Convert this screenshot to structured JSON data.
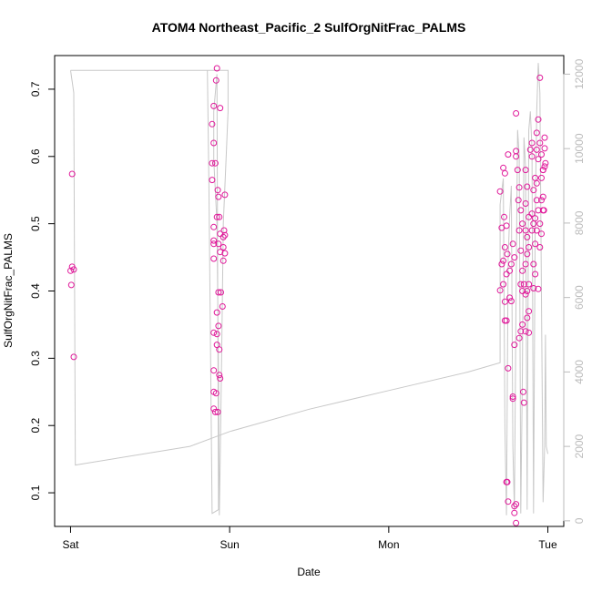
{
  "chart_data": {
    "type": "scatter",
    "title": "ATOM4 Northeast_Pacific_2 SulfOrgNitFrac_PALMS",
    "xlabel": "Date",
    "ylabel": "SulfOrgNitFrac_PALMS",
    "x_unit": "days after Sat 00:00",
    "x_ticks": [
      {
        "value": 0,
        "label": "Sat"
      },
      {
        "value": 1,
        "label": "Sun"
      },
      {
        "value": 2,
        "label": "Mon"
      },
      {
        "value": 3,
        "label": "Tue"
      }
    ],
    "xlim": [
      -0.1,
      3.1
    ],
    "ylim": [
      0.05,
      0.75
    ],
    "y_ticks": [
      0.1,
      0.2,
      0.3,
      0.4,
      0.5,
      0.6,
      0.7
    ],
    "y2lim": [
      -150,
      12500
    ],
    "y2_ticks": [
      0,
      2000,
      4000,
      6000,
      8000,
      10000,
      12000
    ],
    "grid": false,
    "colors": {
      "points": "#e0199a",
      "altitude": "#c8c8c8",
      "right_axis": "#bbbbbb"
    },
    "series": [
      {
        "marker": "open-circle",
        "points": [
          [
            0.01,
            0.574
          ],
          [
            0.0,
            0.43
          ],
          [
            0.01,
            0.436
          ],
          [
            0.02,
            0.432
          ],
          [
            0.005,
            0.409
          ],
          [
            0.02,
            0.302
          ],
          [
            0.9,
            0.675
          ],
          [
            0.92,
            0.731
          ],
          [
            0.89,
            0.648
          ],
          [
            0.9,
            0.62
          ],
          [
            0.91,
            0.59
          ],
          [
            0.89,
            0.59
          ],
          [
            0.915,
            0.713
          ],
          [
            0.94,
            0.672
          ],
          [
            0.89,
            0.565
          ],
          [
            0.925,
            0.55
          ],
          [
            0.92,
            0.51
          ],
          [
            0.93,
            0.54
          ],
          [
            0.97,
            0.543
          ],
          [
            0.9,
            0.495
          ],
          [
            0.935,
            0.51
          ],
          [
            0.94,
            0.485
          ],
          [
            0.965,
            0.49
          ],
          [
            0.96,
            0.48
          ],
          [
            0.97,
            0.483
          ],
          [
            0.9,
            0.47
          ],
          [
            0.9,
            0.475
          ],
          [
            0.93,
            0.47
          ],
          [
            0.96,
            0.465
          ],
          [
            0.94,
            0.458
          ],
          [
            0.97,
            0.456
          ],
          [
            0.9,
            0.448
          ],
          [
            0.96,
            0.445
          ],
          [
            0.93,
            0.398
          ],
          [
            0.945,
            0.398
          ],
          [
            0.955,
            0.377
          ],
          [
            0.92,
            0.368
          ],
          [
            0.93,
            0.348
          ],
          [
            0.9,
            0.338
          ],
          [
            0.92,
            0.336
          ],
          [
            0.92,
            0.32
          ],
          [
            0.935,
            0.313
          ],
          [
            0.9,
            0.282
          ],
          [
            0.935,
            0.275
          ],
          [
            0.94,
            0.27
          ],
          [
            0.9,
            0.25
          ],
          [
            0.915,
            0.248
          ],
          [
            0.9,
            0.225
          ],
          [
            0.91,
            0.22
          ],
          [
            0.925,
            0.22
          ],
          [
            2.7,
            0.401
          ],
          [
            2.72,
            0.583
          ],
          [
            2.75,
            0.603
          ],
          [
            2.73,
            0.575
          ],
          [
            2.7,
            0.548
          ],
          [
            2.725,
            0.51
          ],
          [
            2.71,
            0.494
          ],
          [
            2.74,
            0.497
          ],
          [
            2.73,
            0.465
          ],
          [
            2.72,
            0.445
          ],
          [
            2.745,
            0.455
          ],
          [
            2.71,
            0.44
          ],
          [
            2.74,
            0.425
          ],
          [
            2.72,
            0.41
          ],
          [
            2.73,
            0.356
          ],
          [
            2.74,
            0.356
          ],
          [
            2.75,
            0.285
          ],
          [
            2.73,
            0.384
          ],
          [
            2.74,
            0.116
          ],
          [
            2.745,
            0.116
          ],
          [
            2.75,
            0.087
          ],
          [
            2.76,
            0.39
          ],
          [
            2.77,
            0.385
          ],
          [
            2.78,
            0.24
          ],
          [
            2.78,
            0.243
          ],
          [
            2.79,
            0.32
          ],
          [
            2.76,
            0.43
          ],
          [
            2.77,
            0.44
          ],
          [
            2.78,
            0.47
          ],
          [
            2.79,
            0.45
          ],
          [
            2.8,
            0.664
          ],
          [
            2.8,
            0.608
          ],
          [
            2.8,
            0.6
          ],
          [
            2.81,
            0.58
          ],
          [
            2.82,
            0.554
          ],
          [
            2.815,
            0.535
          ],
          [
            2.83,
            0.52
          ],
          [
            2.82,
            0.49
          ],
          [
            2.84,
            0.5
          ],
          [
            2.83,
            0.46
          ],
          [
            2.84,
            0.43
          ],
          [
            2.83,
            0.41
          ],
          [
            2.84,
            0.4
          ],
          [
            2.85,
            0.41
          ],
          [
            2.84,
            0.35
          ],
          [
            2.83,
            0.34
          ],
          [
            2.82,
            0.33
          ],
          [
            2.845,
            0.25
          ],
          [
            2.85,
            0.234
          ],
          [
            2.79,
            0.08
          ],
          [
            2.8,
            0.083
          ],
          [
            2.79,
            0.07
          ],
          [
            2.8,
            0.055
          ],
          [
            2.86,
            0.58
          ],
          [
            2.87,
            0.555
          ],
          [
            2.86,
            0.53
          ],
          [
            2.88,
            0.51
          ],
          [
            2.86,
            0.49
          ],
          [
            2.87,
            0.48
          ],
          [
            2.88,
            0.465
          ],
          [
            2.87,
            0.455
          ],
          [
            2.86,
            0.44
          ],
          [
            2.88,
            0.41
          ],
          [
            2.87,
            0.4
          ],
          [
            2.86,
            0.395
          ],
          [
            2.88,
            0.37
          ],
          [
            2.87,
            0.36
          ],
          [
            2.86,
            0.34
          ],
          [
            2.88,
            0.338
          ],
          [
            2.89,
            0.61
          ],
          [
            2.9,
            0.62
          ],
          [
            2.9,
            0.6
          ],
          [
            2.91,
            0.55
          ],
          [
            2.9,
            0.515
          ],
          [
            2.91,
            0.5
          ],
          [
            2.9,
            0.49
          ],
          [
            2.92,
            0.47
          ],
          [
            2.91,
            0.44
          ],
          [
            2.92,
            0.425
          ],
          [
            2.91,
            0.404
          ],
          [
            2.93,
            0.635
          ],
          [
            2.93,
            0.61
          ],
          [
            2.92,
            0.568
          ],
          [
            2.94,
            0.655
          ],
          [
            2.94,
            0.596
          ],
          [
            2.93,
            0.56
          ],
          [
            2.93,
            0.535
          ],
          [
            2.94,
            0.52
          ],
          [
            2.92,
            0.508
          ],
          [
            2.93,
            0.49
          ],
          [
            2.95,
            0.717
          ],
          [
            2.95,
            0.62
          ],
          [
            2.96,
            0.603
          ],
          [
            2.97,
            0.58
          ],
          [
            2.96,
            0.568
          ],
          [
            2.97,
            0.54
          ],
          [
            2.96,
            0.535
          ],
          [
            2.97,
            0.52
          ],
          [
            2.95,
            0.5
          ],
          [
            2.96,
            0.485
          ],
          [
            2.95,
            0.465
          ],
          [
            2.94,
            0.403
          ],
          [
            2.98,
            0.628
          ],
          [
            2.98,
            0.612
          ],
          [
            2.985,
            0.59
          ],
          [
            2.98,
            0.585
          ],
          [
            2.97,
            0.58
          ],
          [
            2.975,
            0.52
          ]
        ]
      },
      {
        "name": "",
        "axis": "right",
        "style": "line",
        "points": [
          [
            0.0,
            12100
          ],
          [
            0.02,
            11500
          ],
          [
            0.03,
            1500
          ],
          [
            0.75,
            2000
          ],
          [
            1.0,
            2400
          ],
          [
            1.5,
            3000
          ],
          [
            2.0,
            3500
          ],
          [
            2.5,
            4000
          ],
          [
            2.7,
            4250
          ],
          [
            2.7,
            8500
          ],
          [
            2.72,
            9200
          ],
          [
            2.73,
            2500
          ],
          [
            2.74,
            150
          ],
          [
            2.75,
            7000
          ],
          [
            2.76,
            8200
          ],
          [
            2.77,
            9000
          ],
          [
            2.78,
            2000
          ],
          [
            2.79,
            300
          ],
          [
            2.8,
            6000
          ],
          [
            2.81,
            10500
          ],
          [
            2.82,
            9800
          ],
          [
            2.83,
            200
          ],
          [
            2.84,
            4000
          ],
          [
            2.85,
            10300
          ],
          [
            2.86,
            9500
          ],
          [
            2.87,
            300
          ],
          [
            2.88,
            10500
          ],
          [
            2.89,
            11000
          ],
          [
            2.9,
            10000
          ],
          [
            2.91,
            200
          ],
          [
            2.92,
            8000
          ],
          [
            2.93,
            11000
          ],
          [
            2.94,
            12300
          ],
          [
            2.95,
            11500
          ],
          [
            2.96,
            6000
          ],
          [
            2.97,
            500
          ],
          [
            2.98,
            2000
          ],
          [
            2.985,
            5000
          ],
          [
            2.99,
            2000
          ],
          [
            3.0,
            1800
          ]
        ],
        "segments_extra": [
          [
            [
              0.0,
              12100
            ],
            [
              0.99,
              12100
            ],
            [
              0.99,
              11000
            ],
            [
              0.98,
              10000
            ],
            [
              0.96,
              8000
            ],
            [
              0.95,
              4500
            ],
            [
              0.94,
              1500
            ],
            [
              0.935,
              150
            ],
            [
              0.93,
              4000
            ],
            [
              0.92,
              8000
            ],
            [
              0.9,
              9700
            ],
            [
              0.9,
              11000
            ],
            [
              0.92,
              12000
            ],
            [
              0.93,
              300
            ],
            [
              0.89,
              200
            ],
            [
              0.87,
              9000
            ],
            [
              0.86,
              12100
            ]
          ]
        ]
      }
    ]
  }
}
